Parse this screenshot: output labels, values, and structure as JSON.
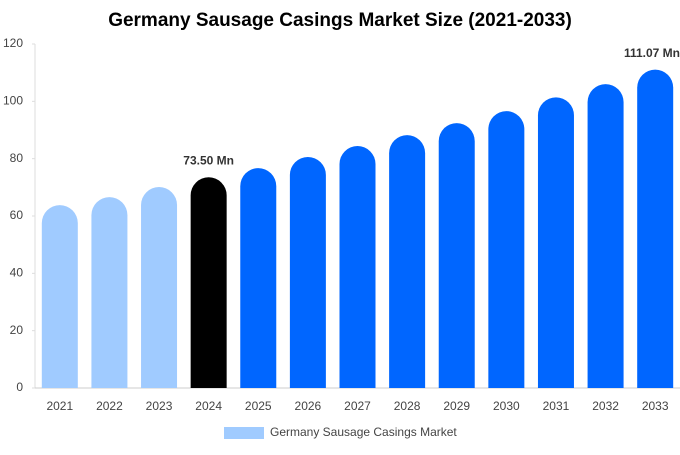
{
  "chart_data": {
    "type": "bar",
    "title": "Germany Sausage Casings Market Size (2021-2033)",
    "categories": [
      "2021",
      "2022",
      "2023",
      "2024",
      "2025",
      "2026",
      "2027",
      "2028",
      "2029",
      "2030",
      "2031",
      "2032",
      "2033"
    ],
    "series": [
      {
        "name": "Germany Sausage Casings Market",
        "color": "#a0cbff",
        "colors": [
          "#a0cbff",
          "#a0cbff",
          "#a0cbff",
          "#000000",
          "#0066ff",
          "#0066ff",
          "#0066ff",
          "#0066ff",
          "#0066ff",
          "#0066ff",
          "#0066ff",
          "#0066ff",
          "#0066ff"
        ],
        "values": [
          63.8,
          66.6,
          70.1,
          73.5,
          76.7,
          80.6,
          84.4,
          88.2,
          92.4,
          96.6,
          101.4,
          106,
          111.07
        ],
        "value_labels": [
          null,
          null,
          null,
          "73.50 Mn",
          null,
          null,
          null,
          null,
          null,
          null,
          null,
          null,
          "111.07 Mn"
        ]
      }
    ],
    "ylim": [
      0,
      120
    ],
    "yticks": [
      0,
      20,
      40,
      60,
      80,
      100,
      120
    ],
    "grid": false,
    "legend": "bottom"
  }
}
